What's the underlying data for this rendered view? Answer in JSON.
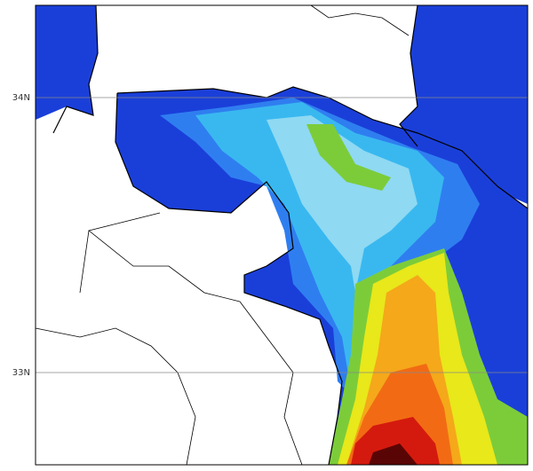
{
  "map": {
    "grid_labels": [
      "34N",
      "33N"
    ]
  }
}
